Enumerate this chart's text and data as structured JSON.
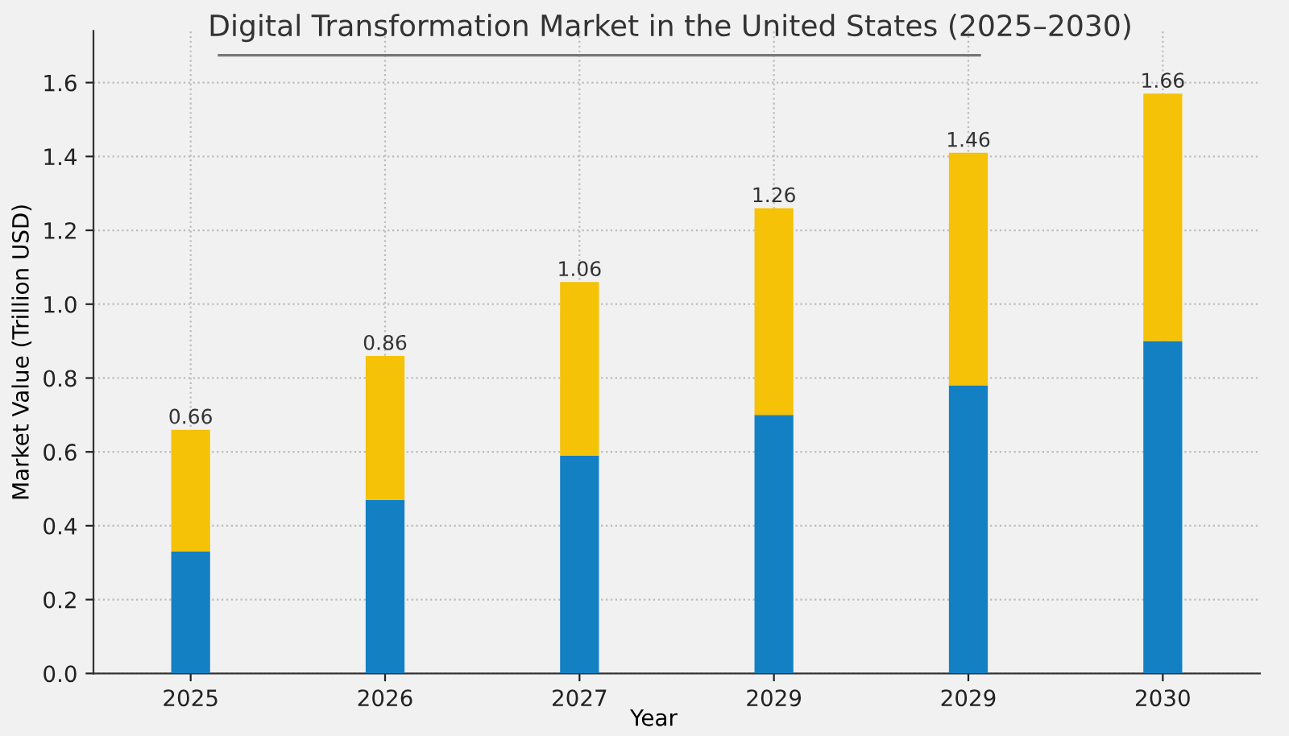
{
  "chart_data": {
    "type": "bar",
    "title": "Digital Transformation Market in the United States (2025–2030)",
    "xlabel": "Year",
    "ylabel": "Market Value (Trillion USD)",
    "categories": [
      "2025",
      "2026",
      "2027",
      "2029",
      "2029",
      "2030"
    ],
    "stacked": true,
    "series": [
      {
        "color": "#1380c4",
        "values": [
          0.33,
          0.47,
          0.59,
          0.7,
          0.78,
          0.9
        ]
      },
      {
        "color": "#f5c207",
        "values": [
          0.33,
          0.39,
          0.47,
          0.56,
          0.63,
          0.67
        ]
      }
    ],
    "annotations": [
      "0.66",
      "0.86",
      "1.06",
      "1.26",
      "1.46",
      "1.66"
    ],
    "ylim": [
      0,
      1.74
    ],
    "yticks": [
      {
        "value": 0,
        "label": "0.0"
      },
      0.2,
      0.4,
      0.6,
      0.8,
      {
        "value": 1,
        "label": "1.0"
      },
      1.2,
      1.4,
      1.6
    ],
    "grid": true,
    "legend": false
  }
}
